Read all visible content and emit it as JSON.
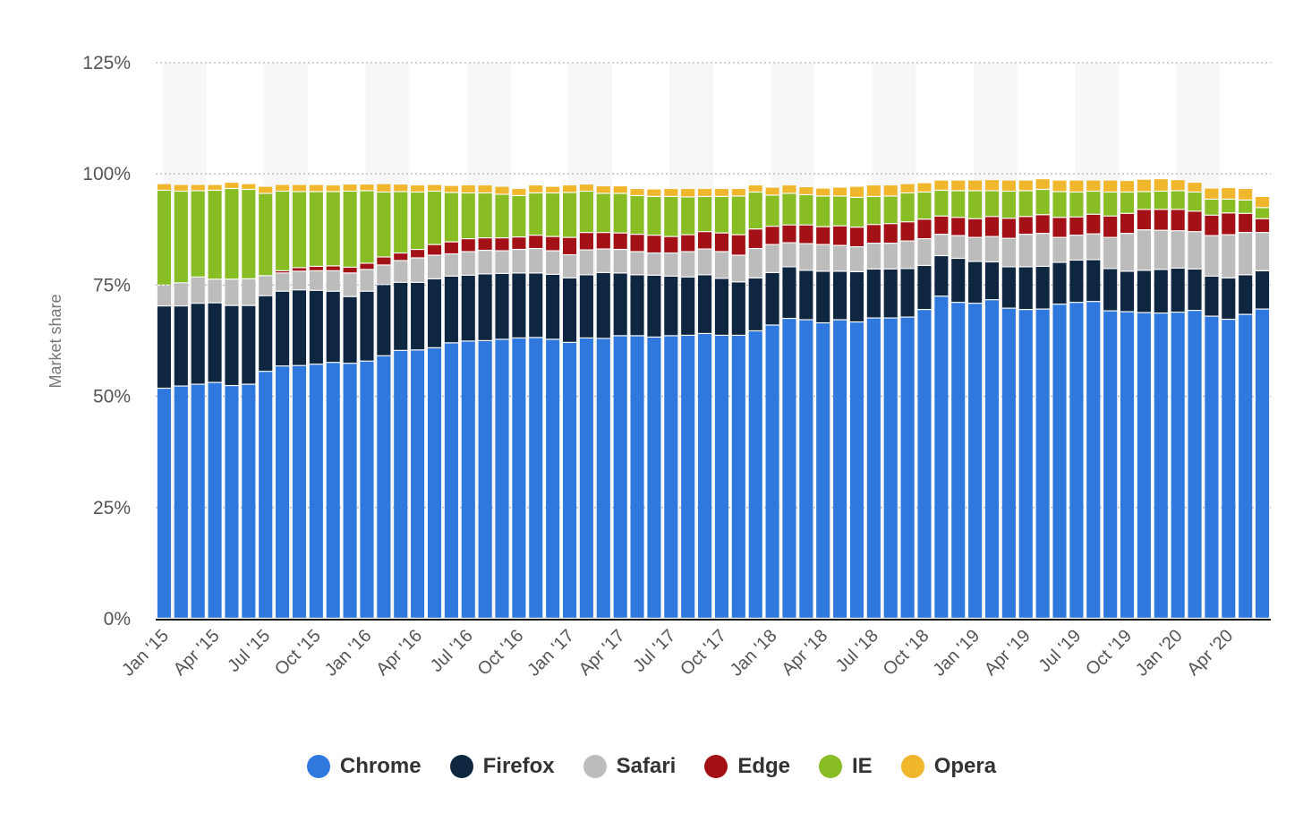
{
  "chart_data": {
    "type": "bar",
    "stacked": true,
    "title": "",
    "xlabel": "",
    "ylabel": "Market share",
    "ylim": [
      0,
      125
    ],
    "yticks": [
      "0%",
      "25%",
      "50%",
      "75%",
      "100%",
      "125%"
    ],
    "ytick_values": [
      0,
      25,
      50,
      75,
      100,
      125
    ],
    "grid": true,
    "legend_position": "bottom",
    "categories": [
      "Jan '15",
      "Feb '15",
      "Mar '15",
      "Apr '15",
      "May '15",
      "Jun '15",
      "Jul '15",
      "Aug '15",
      "Sep '15",
      "Oct '15",
      "Nov '15",
      "Dec '15",
      "Jan '16",
      "Feb '16",
      "Mar '16",
      "Apr '16",
      "May '16",
      "Jun '16",
      "Jul '16",
      "Aug '16",
      "Sep '16",
      "Oct '16",
      "Nov '16",
      "Dec '16",
      "Jan '17",
      "Feb '17",
      "Mar '17",
      "Apr '17",
      "May '17",
      "Jun '17",
      "Jul '17",
      "Aug '17",
      "Sep '17",
      "Oct '17",
      "Nov '17",
      "Dec '17",
      "Jan '18",
      "Feb '18",
      "Mar '18",
      "Apr '18",
      "May '18",
      "Jun '18",
      "Jul '18",
      "Aug '18",
      "Sep '18",
      "Oct '18",
      "Nov '18",
      "Dec '18",
      "Jan '19",
      "Feb '19",
      "Mar '19",
      "Apr '19",
      "May '19",
      "Jun '19",
      "Jul '19",
      "Aug '19",
      "Sep '19",
      "Oct '19",
      "Nov '19",
      "Dec '19",
      "Jan '20",
      "Feb '20",
      "Mar '20",
      "Apr '20",
      "May '20",
      "Jun '20"
    ],
    "xtick_labels": [
      "Jan '15",
      "Apr '15",
      "Jul '15",
      "Oct '15",
      "Jan '16",
      "Apr '16",
      "Jul '16",
      "Oct '16",
      "Jan '17",
      "Apr '17",
      "Jul '17",
      "Oct '17",
      "Jan '18",
      "Apr '18",
      "Jul '18",
      "Oct '18",
      "Jan '19",
      "Apr '19",
      "Jul '19",
      "Oct '19",
      "Jan '20",
      "Apr '20"
    ],
    "series": [
      {
        "name": "Chrome",
        "color": "#2f78dd",
        "values": [
          51.7,
          52.2,
          52.6,
          53.0,
          52.3,
          52.6,
          55.5,
          56.7,
          56.8,
          57.1,
          57.5,
          57.3,
          57.8,
          59.0,
          60.2,
          60.3,
          60.8,
          61.9,
          62.3,
          62.4,
          62.7,
          63.0,
          63.1,
          62.7,
          62.0,
          63.0,
          62.9,
          63.5,
          63.5,
          63.2,
          63.5,
          63.6,
          64.0,
          63.6,
          63.6,
          64.6,
          65.9,
          67.4,
          67.1,
          66.4,
          67.1,
          66.6,
          67.5,
          67.5,
          67.7,
          69.4,
          72.4,
          71.0,
          70.8,
          71.6,
          69.7,
          69.4,
          69.5,
          70.6,
          71.0,
          71.2,
          69.1,
          68.9,
          68.7,
          68.6,
          68.8,
          69.2,
          67.9,
          67.2,
          68.3,
          69.5
        ]
      },
      {
        "name": "Firefox",
        "color": "#0f2640",
        "values": [
          18.5,
          18.0,
          18.2,
          17.9,
          18.0,
          17.7,
          17.0,
          16.8,
          17.0,
          16.6,
          16.0,
          15.0,
          15.7,
          16.0,
          15.3,
          15.2,
          15.5,
          15.0,
          14.8,
          15.0,
          14.8,
          14.6,
          14.5,
          14.6,
          14.5,
          14.2,
          14.8,
          14.1,
          13.7,
          13.9,
          13.4,
          13.1,
          13.2,
          12.8,
          12.0,
          11.9,
          11.8,
          11.6,
          11.1,
          11.6,
          10.9,
          11.3,
          11.0,
          11.0,
          10.9,
          9.9,
          9.1,
          9.9,
          9.4,
          8.5,
          9.3,
          9.6,
          9.6,
          9.4,
          9.5,
          9.4,
          9.5,
          9.1,
          9.5,
          9.8,
          9.9,
          9.3,
          9.0,
          9.3,
          8.9,
          8.6
        ]
      },
      {
        "name": "Safari",
        "color": "#bcbcbc",
        "values": [
          4.7,
          5.2,
          5.9,
          5.3,
          5.9,
          6.0,
          4.5,
          4.1,
          4.2,
          4.4,
          4.6,
          5.3,
          4.9,
          4.4,
          4.9,
          5.5,
          5.3,
          5.0,
          5.3,
          5.3,
          5.1,
          5.3,
          5.5,
          5.3,
          5.2,
          5.6,
          5.3,
          5.3,
          5.2,
          5.0,
          5.2,
          5.7,
          5.8,
          6.0,
          6.0,
          6.6,
          6.3,
          5.4,
          6.0,
          6.0,
          5.8,
          5.6,
          5.8,
          5.8,
          6.2,
          6.0,
          4.8,
          5.1,
          5.4,
          5.7,
          6.4,
          7.3,
          7.4,
          5.6,
          5.6,
          5.8,
          7.0,
          8.5,
          9.1,
          8.8,
          8.4,
          8.4,
          9.1,
          9.7,
          9.5,
          8.6
        ]
      },
      {
        "name": "Edge",
        "color": "#a31016",
        "values": [
          0,
          0,
          0,
          0,
          0,
          0,
          0,
          0.5,
          0.8,
          1.0,
          1.1,
          1.3,
          1.4,
          1.8,
          1.7,
          1.9,
          2.4,
          2.7,
          2.9,
          2.8,
          2.9,
          2.8,
          3.0,
          3.2,
          3.9,
          3.9,
          3.7,
          3.7,
          3.9,
          4.0,
          3.7,
          3.8,
          3.9,
          4.2,
          4.6,
          4.4,
          4.1,
          4.0,
          4.2,
          4.0,
          4.4,
          4.4,
          4.2,
          4.4,
          4.3,
          4.4,
          4.1,
          4.1,
          4.2,
          4.5,
          4.5,
          4.0,
          4.2,
          4.5,
          4.1,
          4.4,
          4.8,
          4.5,
          4.6,
          4.7,
          4.8,
          4.6,
          4.6,
          4.9,
          4.3,
          3.1
        ]
      },
      {
        "name": "IE",
        "color": "#88bd24",
        "values": [
          21.3,
          20.6,
          19.4,
          20.0,
          20.4,
          20.1,
          18.5,
          17.9,
          17.1,
          16.8,
          16.7,
          17.1,
          16.3,
          14.6,
          13.8,
          12.9,
          12.0,
          11.1,
          10.3,
          10.1,
          9.8,
          9.3,
          9.5,
          9.8,
          10.1,
          9.3,
          8.8,
          8.9,
          8.7,
          8.7,
          9.0,
          8.5,
          7.9,
          8.2,
          8.7,
          8.3,
          7.0,
          7.1,
          6.8,
          6.9,
          6.7,
          6.7,
          6.3,
          6.2,
          6.5,
          6.1,
          5.8,
          6.0,
          6.3,
          5.8,
          6.1,
          5.8,
          5.7,
          5.8,
          5.6,
          5.2,
          5.4,
          4.8,
          4.0,
          4.1,
          4.2,
          4.3,
          3.6,
          3.1,
          3.0,
          2.5
        ]
      },
      {
        "name": "Opera",
        "color": "#f0b62c",
        "values": [
          1.5,
          1.5,
          1.4,
          1.3,
          1.4,
          1.3,
          1.6,
          1.5,
          1.6,
          1.6,
          1.5,
          1.6,
          1.5,
          1.9,
          1.7,
          1.6,
          1.5,
          1.6,
          1.8,
          1.8,
          1.8,
          1.6,
          1.8,
          1.5,
          1.7,
          1.6,
          1.7,
          1.7,
          1.6,
          1.7,
          1.8,
          1.9,
          1.8,
          1.8,
          1.7,
          1.6,
          1.8,
          1.9,
          1.8,
          1.8,
          2.0,
          2.5,
          2.6,
          2.5,
          2.1,
          2.1,
          2.3,
          2.4,
          2.4,
          2.5,
          2.5,
          2.4,
          2.4,
          2.6,
          2.7,
          2.5,
          2.7,
          2.6,
          2.8,
          2.8,
          2.5,
          2.2,
          2.5,
          2.6,
          2.6,
          2.5
        ]
      }
    ]
  }
}
